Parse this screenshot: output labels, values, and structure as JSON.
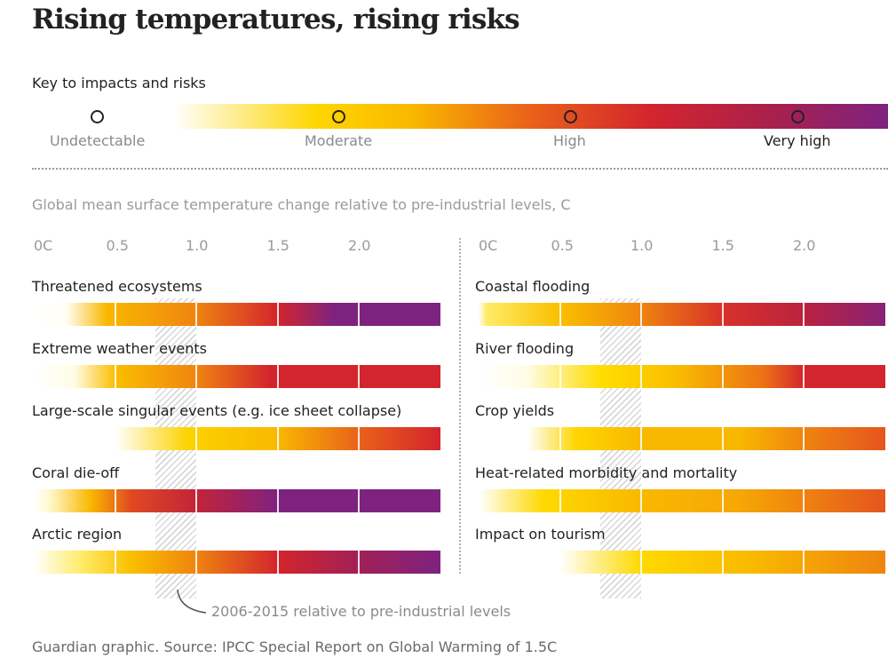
{
  "title": "Rising temperatures, rising risks",
  "key": {
    "title": "Key to impacts and risks",
    "levels": [
      {
        "label": "Undetectable",
        "color": "#ffffff"
      },
      {
        "label": "Moderate",
        "color": "#f9b800"
      },
      {
        "label": "High",
        "color": "#d3252d"
      },
      {
        "label": "Very high",
        "color": "#7e2280"
      }
    ]
  },
  "axis_caption": "Global mean surface temperature change relative to pre-industrial levels, C",
  "annotation": "2006-2015 relative to pre-industrial levels",
  "source": "Guardian graphic. Source: IPCC Special Report on Global Warming of 1.5C",
  "chart_data": [
    {
      "type": "heatmap",
      "title": "",
      "xlabel": "Global mean surface temperature change relative to pre-industrial levels, C",
      "xlim": [
        0,
        2.5
      ],
      "tick_labels": [
        "0C",
        "0.5",
        "1.0",
        "1.5",
        "2.0"
      ],
      "tick_values": [
        0,
        0.5,
        1.0,
        1.5,
        2.0
      ],
      "observed_period": {
        "label": "2006-2015 relative to pre-industrial levels",
        "range": [
          0.75,
          1.0
        ]
      },
      "rows": [
        {
          "name": "Threatened ecosystems",
          "stops": [
            [
              0.0,
              0.0
            ],
            [
              0.2,
              0.02
            ],
            [
              0.45,
              1.0
            ],
            [
              1.0,
              1.3
            ],
            [
              1.5,
              2.0
            ],
            [
              1.85,
              3.0
            ],
            [
              2.5,
              3.0
            ]
          ]
        },
        {
          "name": "Extreme weather events",
          "stops": [
            [
              0.0,
              0.0
            ],
            [
              0.25,
              0.05
            ],
            [
              0.5,
              0.9
            ],
            [
              1.0,
              1.3
            ],
            [
              1.45,
              2.0
            ],
            [
              2.5,
              2.0
            ]
          ]
        },
        {
          "name": "Large-scale singular events (e.g. ice sheet collapse)",
          "stops": [
            [
              0.0,
              0.0
            ],
            [
              0.5,
              0.0
            ],
            [
              0.95,
              0.65
            ],
            [
              1.5,
              1.0
            ],
            [
              2.0,
              1.5
            ],
            [
              2.5,
              2.0
            ]
          ]
        },
        {
          "name": "Coral die-off",
          "stops": [
            [
              0.0,
              0.0
            ],
            [
              0.1,
              0.1
            ],
            [
              0.35,
              1.0
            ],
            [
              0.6,
              1.7
            ],
            [
              1.0,
              2.2
            ],
            [
              1.5,
              3.0
            ],
            [
              2.5,
              3.0
            ]
          ]
        },
        {
          "name": "Arctic region",
          "stops": [
            [
              0.0,
              0.0
            ],
            [
              0.3,
              0.3
            ],
            [
              0.6,
              0.9
            ],
            [
              1.0,
              1.3
            ],
            [
              1.5,
              2.0
            ],
            [
              2.0,
              2.6
            ],
            [
              2.5,
              3.0
            ]
          ]
        }
      ]
    },
    {
      "type": "heatmap",
      "title": "",
      "xlabel": "Global mean surface temperature change relative to pre-industrial levels, C",
      "xlim": [
        0,
        2.5
      ],
      "tick_labels": [
        "0C",
        "0.5",
        "1.0",
        "1.5",
        "2.0"
      ],
      "tick_values": [
        0,
        0.5,
        1.0,
        1.5,
        2.0
      ],
      "observed_period": {
        "label": "2006-2015 relative to pre-industrial levels",
        "range": [
          0.75,
          1.0
        ]
      },
      "rows": [
        {
          "name": "Coastal flooding",
          "stops": [
            [
              0.0,
              0.0
            ],
            [
              0.05,
              0.3
            ],
            [
              0.5,
              0.9
            ],
            [
              1.0,
              1.3
            ],
            [
              1.5,
              1.9
            ],
            [
              2.0,
              2.3
            ],
            [
              2.5,
              2.9
            ]
          ]
        },
        {
          "name": "River flooding",
          "stops": [
            [
              0.0,
              0.0
            ],
            [
              0.3,
              0.05
            ],
            [
              0.75,
              0.5
            ],
            [
              1.2,
              0.9
            ],
            [
              1.75,
              1.4
            ],
            [
              2.0,
              2.0
            ],
            [
              2.5,
              2.0
            ]
          ]
        },
        {
          "name": "Crop yields",
          "stops": [
            [
              0.0,
              0.0
            ],
            [
              0.3,
              0.0
            ],
            [
              0.6,
              0.6
            ],
            [
              1.0,
              1.0
            ],
            [
              1.6,
              1.0
            ],
            [
              2.0,
              1.3
            ],
            [
              2.5,
              1.6
            ]
          ]
        },
        {
          "name": "Heat-related morbidity and mortality",
          "stops": [
            [
              0.0,
              0.0
            ],
            [
              0.4,
              0.55
            ],
            [
              1.0,
              1.0
            ],
            [
              1.6,
              1.1
            ],
            [
              2.5,
              1.6
            ]
          ]
        },
        {
          "name": "Impact on tourism",
          "stops": [
            [
              0.0,
              0.0
            ],
            [
              0.5,
              0.0
            ],
            [
              1.0,
              0.55
            ],
            [
              1.7,
              1.0
            ],
            [
              2.5,
              1.3
            ]
          ]
        }
      ]
    }
  ]
}
